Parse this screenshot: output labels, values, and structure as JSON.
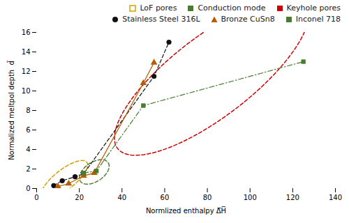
{
  "chart_data": {
    "type": "line",
    "xlabel": "Normlized enthalpy Δ̅H̅",
    "ylabel": "Normalized meltpol depth  d̄",
    "xlim": [
      0,
      140
    ],
    "ylim": [
      0,
      16
    ],
    "xticks": [
      0,
      20,
      40,
      60,
      80,
      100,
      120,
      140
    ],
    "yticks": [
      0,
      2,
      4,
      6,
      8,
      10,
      12,
      14,
      16
    ],
    "grid": false,
    "legend": "upper right",
    "regions": [
      {
        "name": "LoF pores",
        "color": "#d4a000",
        "marker": "open square",
        "line_style": "dashed",
        "cx": 13,
        "cy": 0.9,
        "width": 22,
        "height": 2.5,
        "angle": 8
      },
      {
        "name": "Conduction mode",
        "color": "#4a7c2f",
        "marker": "square",
        "line_style": "dashed",
        "cx": 27,
        "cy": 1.7,
        "width": 14,
        "height": 2.2,
        "angle": 5
      },
      {
        "name": "Keyhole pores",
        "color": "#cc0000",
        "marker": "square",
        "line_style": "dashed",
        "cx": 82,
        "cy": 11.5,
        "width": 92,
        "height": 10,
        "angle": 8
      }
    ],
    "series": [
      {
        "name": "Stainless Steel 316L",
        "color": "#111111",
        "marker": "circle",
        "line_style": "dashed",
        "x": [
          8,
          12,
          18,
          22,
          55,
          62
        ],
        "values": [
          0.3,
          0.8,
          1.2,
          1.5,
          11.5,
          15.0
        ]
      },
      {
        "name": "Bronze CuSn8",
        "color": "#b85c00",
        "marker": "triangle",
        "line_style": "solid",
        "x": [
          10,
          15,
          22,
          27,
          50,
          55
        ],
        "values": [
          0.2,
          0.5,
          1.3,
          1.6,
          10.8,
          12.9
        ]
      },
      {
        "name": "Inconel 718",
        "color": "#4a7c2f",
        "marker": "square",
        "line_style": "dashdot",
        "x": [
          22,
          28,
          50,
          125
        ],
        "values": [
          1.6,
          1.8,
          8.5,
          13.0
        ]
      }
    ]
  }
}
